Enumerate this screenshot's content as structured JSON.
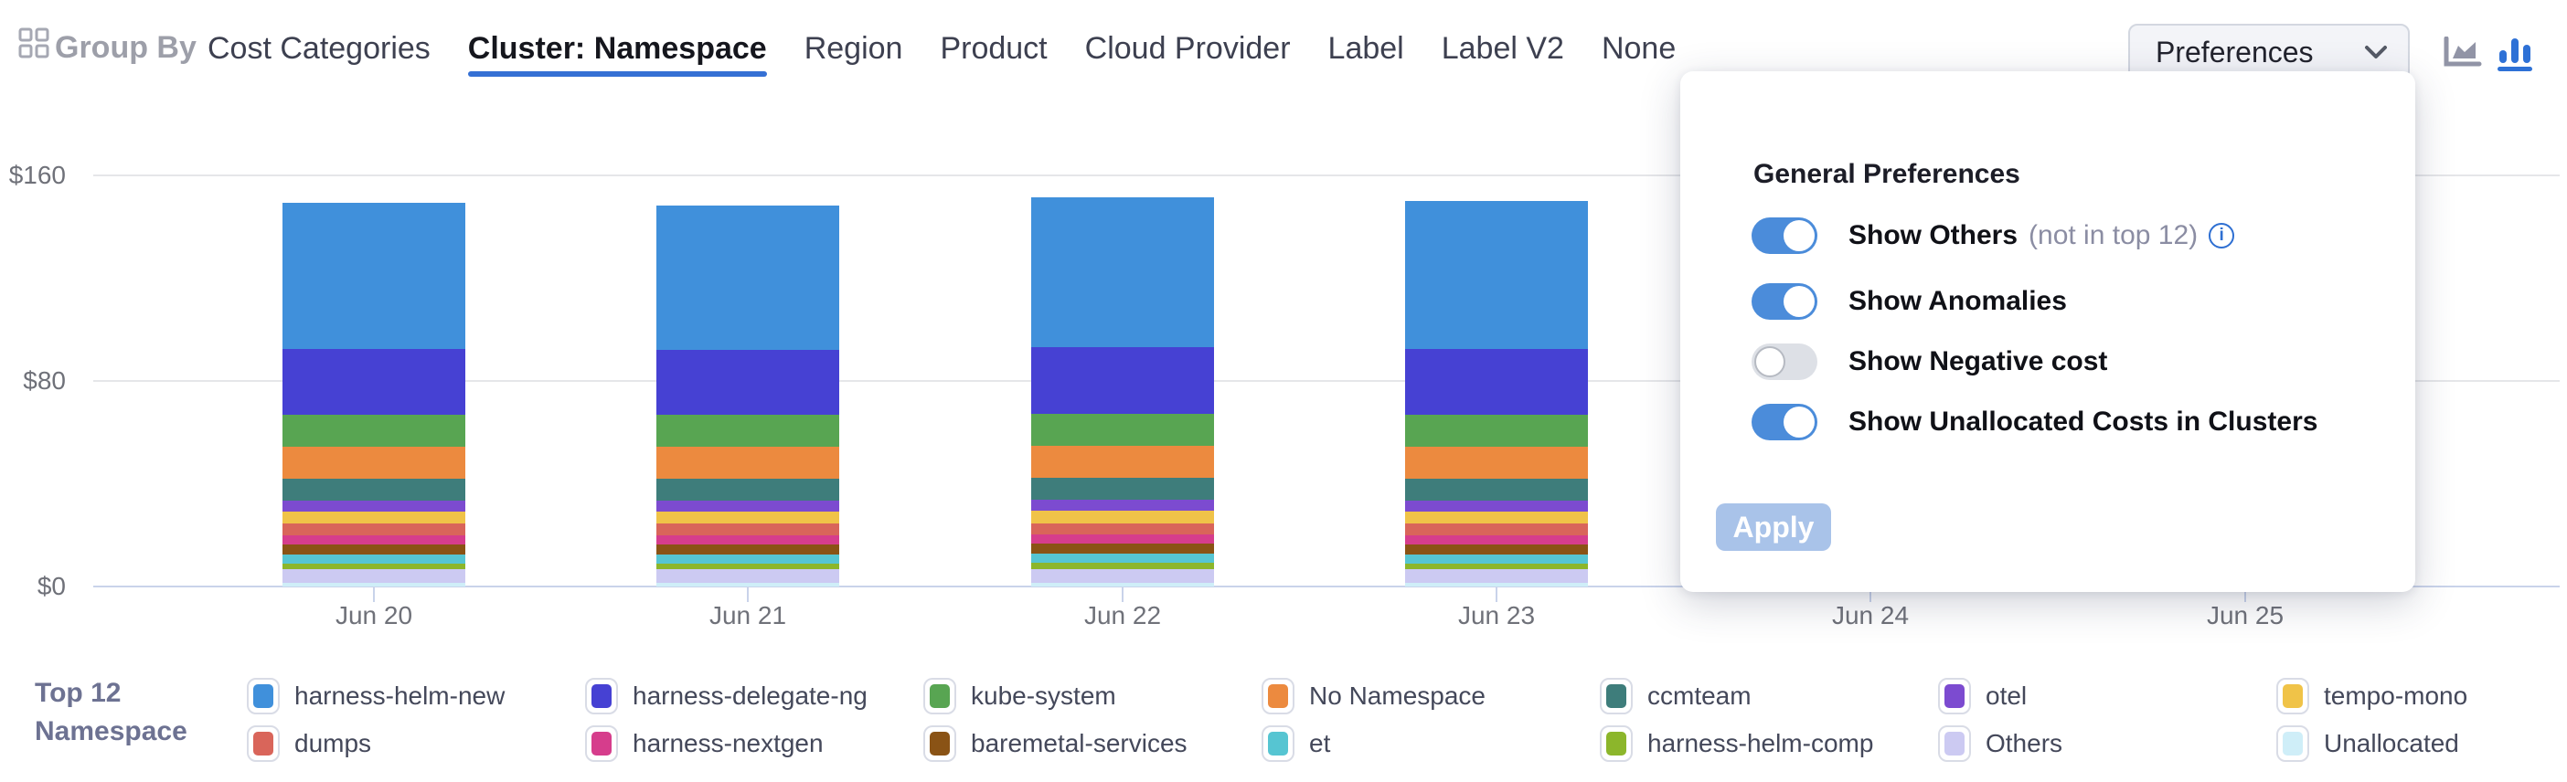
{
  "header": {
    "group_by_label": "Group By",
    "tabs": [
      {
        "label": "Cost Categories",
        "active": false
      },
      {
        "label": "Cluster: Namespace",
        "active": true
      },
      {
        "label": "Region",
        "active": false
      },
      {
        "label": "Product",
        "active": false
      },
      {
        "label": "Cloud Provider",
        "active": false
      },
      {
        "label": "Label",
        "active": false
      },
      {
        "label": "Label V2",
        "active": false
      },
      {
        "label": "None",
        "active": false
      }
    ],
    "preferences_button_label": "Preferences",
    "chart_type_icons": [
      {
        "icon": "area-chart-icon",
        "active": false,
        "color": "#9194a6"
      },
      {
        "icon": "bar-chart-icon",
        "active": true,
        "color": "#2e71d6"
      }
    ]
  },
  "preferences_panel": {
    "title": "General Preferences",
    "toggles": [
      {
        "label": "Show Others",
        "suffix": "(not in top 12)",
        "info_icon": true,
        "on": true
      },
      {
        "label": "Show Anomalies",
        "suffix": "",
        "info_icon": false,
        "on": true
      },
      {
        "label": "Show Negative cost",
        "suffix": "",
        "info_icon": false,
        "on": false
      },
      {
        "label": "Show Unallocated Costs in Clusters",
        "suffix": "",
        "info_icon": false,
        "on": true
      }
    ],
    "apply_label": "Apply",
    "apply_disabled": true
  },
  "chart_data": {
    "type": "bar",
    "stacked": true,
    "title": "",
    "xlabel": "",
    "ylabel": "",
    "x": [
      "Jun 20",
      "Jun 21",
      "Jun 22",
      "Jun 23",
      "Jun 24",
      "Jun 25"
    ],
    "ylim": [
      0,
      160
    ],
    "ytick_labels": [
      "$0",
      "$80",
      "$160"
    ],
    "ytick_values": [
      0,
      80,
      160
    ],
    "grid": true,
    "legend_position": "bottom",
    "note": "Jun 24 and Jun 25 columns are hidden behind the preferences panel overlay; null = not visible",
    "series": [
      {
        "name": "harness-helm-new",
        "color": "#4090db",
        "values": [
          56.9,
          56.3,
          58.2,
          57.4,
          null,
          null
        ]
      },
      {
        "name": "harness-delegate-ng",
        "color": "#4641d3",
        "values": [
          25.5,
          25.3,
          26.0,
          25.8,
          null,
          null
        ]
      },
      {
        "name": "kube-system",
        "color": "#58a552",
        "values": [
          12.4,
          12.4,
          12.5,
          12.4,
          null,
          null
        ]
      },
      {
        "name": "No Namespace",
        "color": "#ec8a3f",
        "values": [
          12.4,
          12.3,
          12.4,
          12.4,
          null,
          null
        ]
      },
      {
        "name": "ccmteam",
        "color": "#3e7d7b",
        "values": [
          8.5,
          8.5,
          8.5,
          8.5,
          null,
          null
        ]
      },
      {
        "name": "otel",
        "color": "#7c4bd0",
        "values": [
          4.3,
          4.3,
          4.4,
          4.3,
          null,
          null
        ]
      },
      {
        "name": "tempo-mono",
        "color": "#f0c348",
        "values": [
          4.8,
          4.8,
          4.8,
          4.8,
          null,
          null
        ]
      },
      {
        "name": "dumps",
        "color": "#d9655a",
        "values": [
          4.5,
          4.5,
          4.5,
          4.5,
          null,
          null
        ]
      },
      {
        "name": "harness-nextgen",
        "color": "#d63d8c",
        "values": [
          3.5,
          3.5,
          3.5,
          3.5,
          null,
          null
        ]
      },
      {
        "name": "baremetal-services",
        "color": "#8a5315",
        "values": [
          3.8,
          3.8,
          3.8,
          3.8,
          null,
          null
        ]
      },
      {
        "name": "et",
        "color": "#56c5d2",
        "values": [
          3.6,
          3.6,
          3.6,
          3.6,
          null,
          null
        ]
      },
      {
        "name": "harness-helm-comp",
        "color": "#8cb62b",
        "values": [
          2.4,
          2.4,
          2.4,
          2.4,
          null,
          null
        ]
      },
      {
        "name": "Others",
        "color": "#cccaf2",
        "values": [
          5.3,
          5.3,
          5.4,
          5.3,
          null,
          null
        ]
      },
      {
        "name": "Unallocated",
        "color": "#cfeef8",
        "values": [
          1.3,
          1.3,
          1.4,
          1.3,
          null,
          null
        ]
      }
    ]
  },
  "legend": {
    "title_line1": "Top 12",
    "title_line2": "Namespace",
    "rows": [
      [
        "harness-helm-new",
        "harness-delegate-ng",
        "kube-system",
        "No Namespace",
        "ccmteam",
        "otel",
        "tempo-mono"
      ],
      [
        "dumps",
        "harness-nextgen",
        "baremetal-services",
        "et",
        "harness-helm-comp",
        "Others",
        "Unallocated"
      ]
    ]
  }
}
